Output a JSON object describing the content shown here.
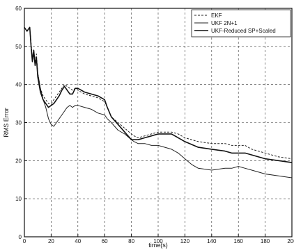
{
  "chart_data": {
    "type": "line",
    "title": "",
    "xlabel": "time(s)",
    "ylabel": "RMS Error",
    "xlim": [
      0,
      200
    ],
    "ylim": [
      0,
      60
    ],
    "x_ticks": [
      0,
      20,
      40,
      60,
      80,
      100,
      120,
      140,
      160,
      180,
      200
    ],
    "y_ticks": [
      0,
      10,
      20,
      30,
      40,
      50,
      60
    ],
    "grid": true,
    "legend_position": "top-right",
    "series": [
      {
        "name": "EKF",
        "style": "dashed",
        "color": "#222222",
        "x": [
          0,
          2,
          4,
          5,
          6,
          7,
          8,
          9,
          10,
          12,
          14,
          16,
          18,
          20,
          22,
          24,
          26,
          28,
          30,
          32,
          34,
          36,
          38,
          40,
          45,
          50,
          55,
          60,
          62,
          65,
          70,
          75,
          80,
          82,
          85,
          90,
          95,
          100,
          110,
          115,
          120,
          130,
          140,
          150,
          155,
          160,
          165,
          170,
          180,
          190,
          200
        ],
        "y": [
          55,
          54,
          55,
          51,
          47,
          49,
          46,
          48,
          43,
          39,
          37,
          36,
          35,
          35,
          36,
          37,
          38,
          39,
          40,
          39.5,
          39,
          38.5,
          39,
          38.5,
          37.5,
          37,
          36.5,
          35.5,
          34,
          31.5,
          30,
          28.5,
          27,
          26.5,
          26,
          26.5,
          27,
          27.5,
          27.5,
          27,
          26,
          25,
          24.5,
          24.5,
          24,
          24,
          24,
          23,
          22,
          21,
          20.5
        ]
      },
      {
        "name": "UKF 2N+1",
        "style": "solid",
        "color": "#222222",
        "x": [
          0,
          2,
          4,
          5,
          6,
          7,
          8,
          9,
          10,
          12,
          14,
          16,
          18,
          20,
          22,
          24,
          26,
          28,
          30,
          32,
          34,
          36,
          38,
          40,
          45,
          50,
          55,
          60,
          62,
          65,
          70,
          75,
          80,
          82,
          85,
          90,
          95,
          100,
          105,
          110,
          115,
          120,
          125,
          130,
          140,
          150,
          155,
          160,
          165,
          170,
          180,
          190,
          200
        ],
        "y": [
          55,
          54,
          55,
          50,
          46,
          48,
          45,
          47,
          43,
          39,
          36,
          34,
          31,
          29.5,
          29,
          30,
          31,
          32,
          33,
          34,
          34.5,
          34,
          34.5,
          34.5,
          34,
          33.5,
          32.5,
          32,
          31,
          30,
          28,
          27,
          25.5,
          25,
          24.5,
          24.5,
          24,
          24,
          23.5,
          23,
          22,
          20.5,
          19,
          18,
          17.5,
          18,
          18,
          18.5,
          18,
          17.5,
          16.5,
          16,
          15.5
        ]
      },
      {
        "name": "UKF-Reduced SP+Scaled",
        "style": "solid-thick",
        "color": "#111111",
        "x": [
          0,
          2,
          4,
          5,
          6,
          7,
          8,
          9,
          10,
          12,
          14,
          16,
          18,
          20,
          22,
          24,
          26,
          28,
          30,
          32,
          34,
          36,
          38,
          40,
          45,
          50,
          55,
          60,
          62,
          65,
          70,
          75,
          80,
          82,
          85,
          90,
          95,
          100,
          110,
          115,
          120,
          130,
          140,
          150,
          155,
          160,
          165,
          170,
          180,
          190,
          200
        ],
        "y": [
          55,
          54,
          55,
          50,
          46,
          49,
          45,
          47,
          42,
          38,
          36,
          35,
          34,
          34.5,
          35,
          36,
          37,
          38.5,
          39.5,
          38.5,
          37.5,
          37.5,
          39,
          39,
          38,
          37.5,
          37,
          36,
          34,
          31.5,
          29.5,
          27.5,
          25.5,
          25.5,
          25.5,
          26,
          26.5,
          27,
          27,
          26,
          25,
          23.5,
          23,
          22.5,
          22,
          22,
          22,
          21.5,
          20.5,
          20,
          19.5
        ]
      }
    ]
  }
}
